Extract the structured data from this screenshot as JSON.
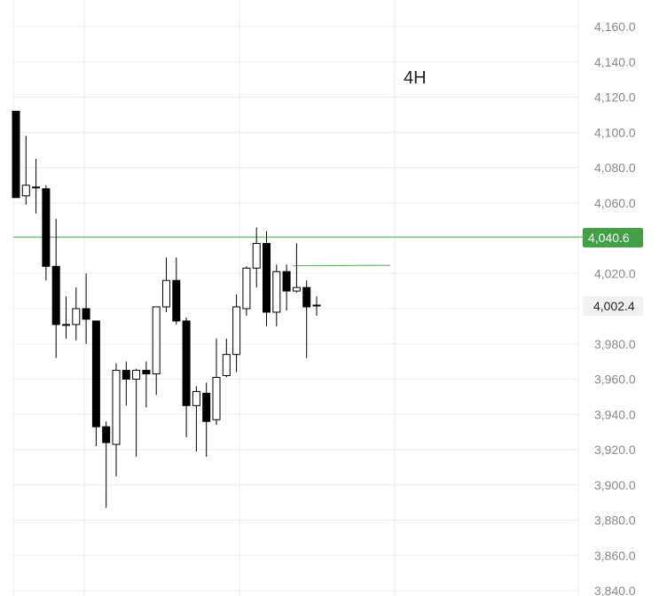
{
  "timeframe_label": "4H",
  "colors": {
    "bull_body": "#ffffff",
    "bear_body": "#000000",
    "candle_outline": "#000000",
    "level_line": "#4caf50",
    "level_badge_bg": "#43a047",
    "level_badge_text": "#ffffff",
    "last_badge_bg": "#f2f2f2",
    "last_badge_text": "#222222",
    "grid": "#eeeeee",
    "axis_text": "#8a8a8a"
  },
  "price_tags": {
    "level": "4,040.6",
    "last": "4,002.4"
  },
  "chart_data": {
    "type": "candlestick",
    "timeframe": "4H",
    "y_axis": {
      "range": [
        3840,
        4160
      ],
      "ticks": [
        "4,160.0",
        "4,140.0",
        "4,120.0",
        "4,100.0",
        "4,080.0",
        "4,060.0",
        "4,020.0",
        "3,980.0",
        "3,960.0",
        "3,940.0",
        "3,920.0",
        "3,900.0",
        "3,880.0",
        "3,860.0",
        "3,840.0"
      ],
      "position": "right"
    },
    "grid": true,
    "horizontal_lines": [
      {
        "price": 4040.6,
        "label": "4,040.6"
      }
    ],
    "trend_segment": {
      "price_start": 4024.3,
      "price_end": 4024.6
    },
    "last_price": {
      "price": 4002.4,
      "label": "4,002.4"
    },
    "candles": [
      {
        "o": 4112,
        "h": 4112,
        "l": 4063,
        "c": 4063
      },
      {
        "o": 4064,
        "h": 4098,
        "l": 4059,
        "c": 4070
      },
      {
        "o": 4069,
        "h": 4085,
        "l": 4054,
        "c": 4069
      },
      {
        "o": 4068,
        "h": 4070,
        "l": 4016,
        "c": 4024
      },
      {
        "o": 4024,
        "h": 4051,
        "l": 3972,
        "c": 3991
      },
      {
        "o": 3991,
        "h": 4007,
        "l": 3983,
        "c": 3991
      },
      {
        "o": 3991,
        "h": 4012,
        "l": 3982,
        "c": 4000
      },
      {
        "o": 4000,
        "h": 4020,
        "l": 3980,
        "c": 3994
      },
      {
        "o": 3993,
        "h": 3993,
        "l": 3922,
        "c": 3933
      },
      {
        "o": 3933,
        "h": 3936,
        "l": 3887,
        "c": 3924
      },
      {
        "o": 3923,
        "h": 3969,
        "l": 3905,
        "c": 3965
      },
      {
        "o": 3965,
        "h": 3970,
        "l": 3945,
        "c": 3960
      },
      {
        "o": 3960,
        "h": 3966,
        "l": 3916,
        "c": 3965
      },
      {
        "o": 3965,
        "h": 3970,
        "l": 3944,
        "c": 3963
      },
      {
        "o": 3963,
        "h": 4001,
        "l": 3951,
        "c": 4001
      },
      {
        "o": 4001,
        "h": 4029,
        "l": 3998,
        "c": 4016
      },
      {
        "o": 4016,
        "h": 4029,
        "l": 3991,
        "c": 3993
      },
      {
        "o": 3993,
        "h": 3995,
        "l": 3927,
        "c": 3945
      },
      {
        "o": 3945,
        "h": 3956,
        "l": 3919,
        "c": 3953
      },
      {
        "o": 3952,
        "h": 3958,
        "l": 3916,
        "c": 3936
      },
      {
        "o": 3937,
        "h": 3983,
        "l": 3934,
        "c": 3961
      },
      {
        "o": 3962,
        "h": 3983,
        "l": 3961,
        "c": 3974
      },
      {
        "o": 3974,
        "h": 4008,
        "l": 3964,
        "c": 4001
      },
      {
        "o": 4000,
        "h": 4024,
        "l": 3996,
        "c": 4023
      },
      {
        "o": 4023,
        "h": 4046,
        "l": 4012,
        "c": 4037
      },
      {
        "o": 4037,
        "h": 4044,
        "l": 3990,
        "c": 3998
      },
      {
        "o": 3998,
        "h": 4025,
        "l": 3990,
        "c": 4021
      },
      {
        "o": 4021,
        "h": 4025,
        "l": 3999,
        "c": 4010
      },
      {
        "o": 4010,
        "h": 4037,
        "l": 4009,
        "c": 4012
      },
      {
        "o": 4012,
        "h": 4016,
        "l": 3972,
        "c": 4001
      },
      {
        "o": 4002,
        "h": 4007,
        "l": 3996,
        "c": 4002
      }
    ]
  }
}
